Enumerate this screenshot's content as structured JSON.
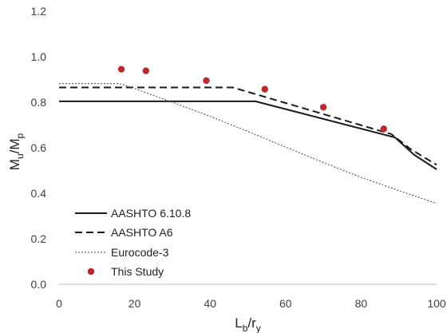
{
  "chart_data": {
    "type": "line",
    "title": "",
    "xlabel": {
      "main": "L",
      "sub1": "b",
      "mid": "/r",
      "sub2": "y"
    },
    "ylabel": {
      "main": "M",
      "sub1": "u",
      "mid": "/M",
      "sub2": "p"
    },
    "xlim": [
      0,
      100
    ],
    "ylim": [
      0.0,
      1.2
    ],
    "xticks": [
      0,
      20,
      40,
      60,
      80,
      100
    ],
    "yticks": [
      0.0,
      0.2,
      0.4,
      0.6,
      0.8,
      1.0,
      1.2
    ],
    "ytick_labels": [
      "0.0",
      "0.2",
      "0.4",
      "0.6",
      "0.8",
      "1.0",
      "1.2"
    ],
    "grid": false,
    "legend_position": "bottom-left",
    "series": [
      {
        "name": "AASHTO 6.10.8",
        "style": "solid",
        "color": "#1a1a1a",
        "points": [
          [
            0,
            0.804
          ],
          [
            52,
            0.804
          ],
          [
            89,
            0.645
          ],
          [
            94,
            0.57
          ],
          [
            100,
            0.505
          ]
        ]
      },
      {
        "name": "AASHTO A6",
        "style": "dashed",
        "color": "#1a1a1a",
        "points": [
          [
            0,
            0.865
          ],
          [
            46,
            0.865
          ],
          [
            88,
            0.66
          ],
          [
            93,
            0.595
          ],
          [
            100,
            0.525
          ]
        ]
      },
      {
        "name": "Eurocode-3",
        "style": "dotted",
        "color": "#444444",
        "points": [
          [
            0,
            0.882
          ],
          [
            16,
            0.882
          ],
          [
            20,
            0.86
          ],
          [
            30,
            0.8
          ],
          [
            40,
            0.738
          ],
          [
            50,
            0.672
          ],
          [
            60,
            0.603
          ],
          [
            70,
            0.535
          ],
          [
            80,
            0.47
          ],
          [
            90,
            0.412
          ],
          [
            100,
            0.355
          ]
        ]
      },
      {
        "name": "This Study",
        "style": "markers",
        "color": "#c0272d",
        "points": [
          [
            16.5,
            0.945
          ],
          [
            23,
            0.938
          ],
          [
            39,
            0.895
          ],
          [
            54.5,
            0.857
          ],
          [
            70,
            0.778
          ],
          [
            86,
            0.683
          ]
        ]
      }
    ]
  }
}
